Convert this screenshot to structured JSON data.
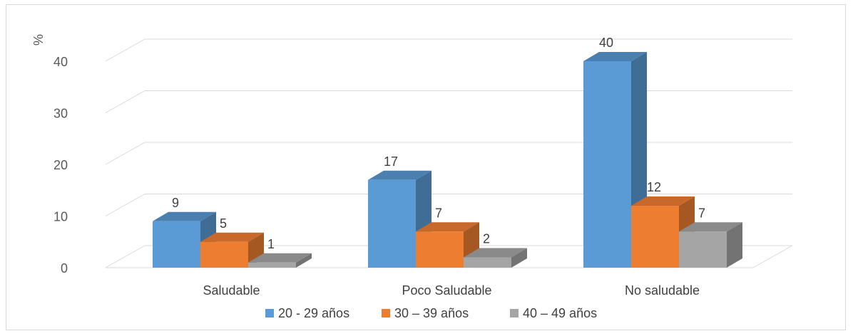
{
  "chart_data": {
    "type": "bar",
    "ylabel": "%",
    "ylim": [
      0,
      40
    ],
    "yticks": [
      "0",
      "10",
      "20",
      "30",
      "40"
    ],
    "categories": [
      "Saludable",
      "Poco Saludable",
      "No saludable"
    ],
    "series": [
      {
        "name": "20 - 29 años",
        "values": [
          9,
          17,
          40
        ],
        "color": "#5b9bd5",
        "side": "#3f6d96",
        "top": "#4a7fb0"
      },
      {
        "name": "30 – 39 años",
        "values": [
          5,
          7,
          12
        ],
        "color": "#ed7d31",
        "side": "#a65822",
        "top": "#c8682a"
      },
      {
        "name": "40 – 49 años",
        "values": [
          1,
          2,
          7
        ],
        "color": "#a5a5a5",
        "side": "#737373",
        "top": "#8a8a8a"
      }
    ],
    "data_labels": [
      [
        "9",
        "17",
        "40"
      ],
      [
        "5",
        "7",
        "12"
      ],
      [
        "1",
        "2",
        "7"
      ]
    ],
    "grid": true,
    "legend": "bottom",
    "style": "3d-clustered-column"
  }
}
